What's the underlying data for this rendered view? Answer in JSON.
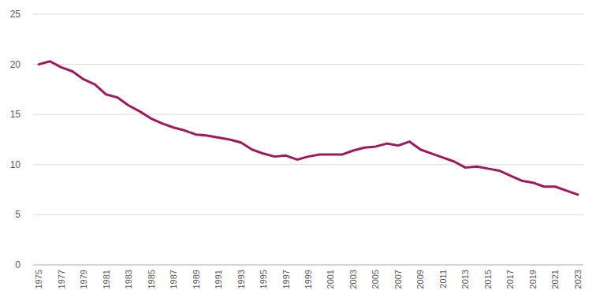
{
  "chart_data": {
    "type": "line",
    "categories": [
      "1975",
      null,
      "1977",
      null,
      "1979",
      null,
      "1981",
      null,
      "1983",
      null,
      "1985",
      null,
      "1987",
      null,
      "1989",
      null,
      "1991",
      null,
      "1993",
      null,
      "1995",
      null,
      "1997",
      null,
      "1999",
      null,
      "2001",
      null,
      "2003",
      null,
      "2005",
      null,
      "2007",
      null,
      "2009",
      null,
      "2011",
      null,
      "2013",
      null,
      "2015",
      null,
      "2017",
      null,
      "2019",
      null,
      "2021",
      null,
      "2023"
    ],
    "values": [
      20.0,
      20.3,
      19.7,
      19.3,
      18.5,
      18.0,
      17.0,
      16.7,
      15.9,
      15.3,
      14.6,
      14.1,
      13.7,
      13.4,
      13.0,
      12.9,
      12.7,
      12.5,
      12.2,
      11.5,
      11.1,
      10.8,
      10.9,
      10.5,
      10.8,
      11.0,
      11.0,
      11.0,
      11.4,
      11.7,
      11.8,
      12.1,
      11.9,
      12.3,
      11.5,
      11.1,
      10.7,
      10.3,
      9.7,
      9.8,
      9.6,
      9.4,
      8.9,
      8.4,
      8.2,
      7.8,
      7.8,
      7.4,
      7.0
    ],
    "color": "#9c1b5f",
    "ylim": [
      0,
      25
    ],
    "yticks": [
      0,
      5,
      10,
      15,
      20,
      25
    ],
    "grid": true
  }
}
